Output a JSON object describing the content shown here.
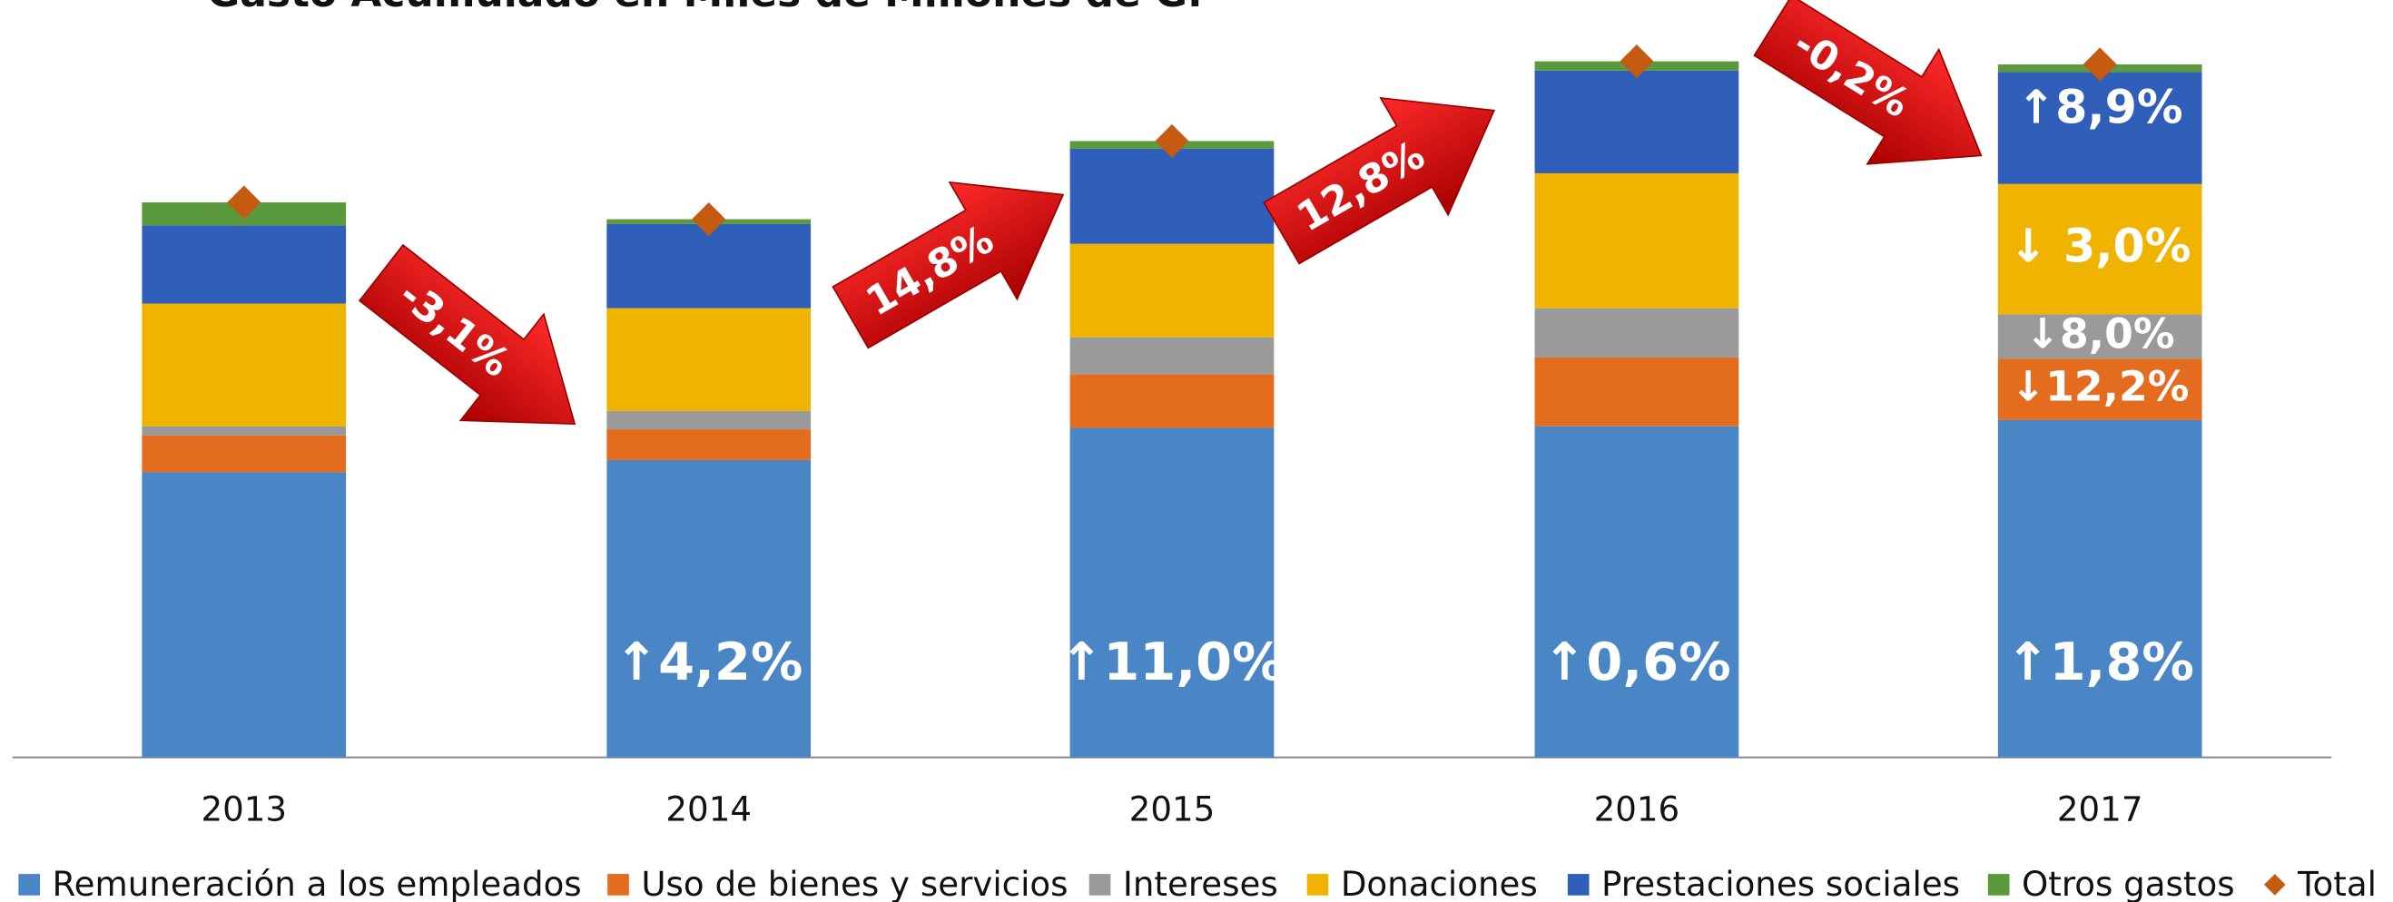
{
  "chart_data": {
    "type": "bar",
    "stacked": true,
    "title": "Gasto Acumulado en Miles de Millones de G.",
    "categories": [
      "2013",
      "2014",
      "2015",
      "2016",
      "2017"
    ],
    "series": [
      {
        "name": "Remuneración a los empleados",
        "color": "#4a86c5",
        "values": [
          186,
          194,
          215,
          216,
          220
        ],
        "change_labels": [
          null,
          "↑4,2%",
          "↑11,0%",
          "↑0,6%",
          "↑1,8%"
        ]
      },
      {
        "name": "Uso de bienes y servicios",
        "color": "#e46c1f",
        "values": [
          24,
          20,
          35,
          45,
          40
        ],
        "change_labels": [
          null,
          null,
          null,
          null,
          "↓12,2%"
        ]
      },
      {
        "name": "Intereses",
        "color": "#9a9a9a",
        "values": [
          6,
          12,
          24,
          32,
          29
        ],
        "change_labels": [
          null,
          null,
          null,
          null,
          "↓8,0%"
        ]
      },
      {
        "name": "Donaciones",
        "color": "#f0b400",
        "values": [
          80,
          67,
          61,
          88,
          85
        ],
        "change_labels": [
          null,
          null,
          null,
          null,
          "↓ 3,0%"
        ]
      },
      {
        "name": "Prestaciones sociales",
        "color": "#2f5fb8",
        "values": [
          51,
          55,
          62,
          67,
          73
        ],
        "change_labels": [
          null,
          null,
          null,
          null,
          "↑8,9%"
        ]
      },
      {
        "name": "Otros gastos",
        "color": "#5b9a3c",
        "values": [
          15,
          3,
          5,
          6,
          5
        ]
      },
      {
        "name": "Total",
        "type": "scatter",
        "color": "#c55a11",
        "values": [
          362,
          351,
          402,
          454,
          452
        ]
      }
    ],
    "total_changes": [
      "-3,1%",
      "14,8%",
      "12,8%",
      "-0,2%"
    ]
  }
}
